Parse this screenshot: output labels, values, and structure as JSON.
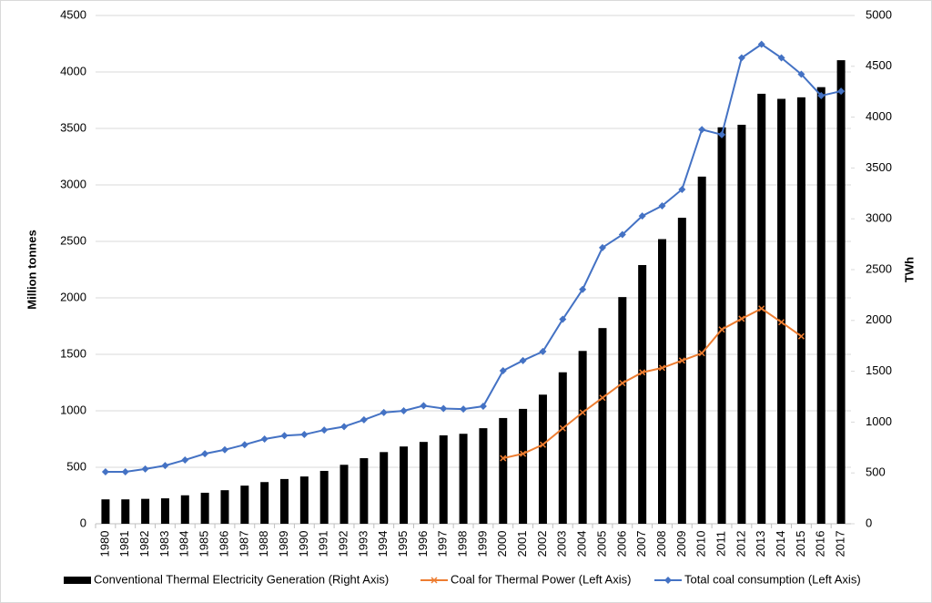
{
  "chart_data": {
    "type": "bar",
    "categories": [
      "1980",
      "1981",
      "1982",
      "1983",
      "1984",
      "1985",
      "1986",
      "1987",
      "1988",
      "1989",
      "1990",
      "1991",
      "1992",
      "1993",
      "1994",
      "1995",
      "1996",
      "1997",
      "1998",
      "1999",
      "2000",
      "2001",
      "2002",
      "2003",
      "2004",
      "2005",
      "2006",
      "2007",
      "2008",
      "2009",
      "2010",
      "2011",
      "2012",
      "2013",
      "2014",
      "2015",
      "2016",
      "2017"
    ],
    "y_label": "Million tonnes",
    "y2_label": "TWh",
    "ylim": [
      0,
      4500
    ],
    "yticks": [
      0,
      500,
      1000,
      1500,
      2000,
      2500,
      3000,
      3500,
      4000,
      4500
    ],
    "y2lim": [
      0,
      5000
    ],
    "y2ticks": [
      0,
      500,
      1000,
      1500,
      2000,
      2500,
      3000,
      3500,
      4000,
      4500,
      5000
    ],
    "grid": true,
    "legend": "bottom",
    "series": [
      {
        "name": "Conventional Thermal Electricity Generation (Right Axis)",
        "type": "bar",
        "axis": "y2",
        "color": "#000000",
        "values": [
          240,
          240,
          245,
          250,
          280,
          305,
          330,
          375,
          410,
          440,
          465,
          520,
          580,
          645,
          705,
          760,
          805,
          870,
          885,
          940,
          1040,
          1130,
          1270,
          1490,
          1700,
          1925,
          2230,
          2545,
          2800,
          3010,
          3415,
          3900,
          3925,
          4230,
          4180,
          4195,
          4295,
          4560
        ]
      },
      {
        "name": "Coal for Thermal Power (Left Axis)",
        "type": "line",
        "marker": "x",
        "color": "#ed7d31",
        "values": [
          null,
          null,
          null,
          null,
          null,
          null,
          null,
          null,
          null,
          null,
          null,
          null,
          null,
          null,
          null,
          null,
          null,
          null,
          null,
          null,
          580,
          620,
          700,
          845,
          985,
          1115,
          1245,
          1340,
          1380,
          1445,
          1510,
          1720,
          1815,
          1905,
          1785,
          1660,
          null,
          null
        ]
      },
      {
        "name": "Total coal consumption (Left Axis)",
        "type": "line",
        "marker": "diamond",
        "color": "#4472c4",
        "values": [
          460,
          460,
          485,
          515,
          565,
          620,
          655,
          700,
          750,
          780,
          790,
          830,
          860,
          920,
          985,
          1000,
          1045,
          1020,
          1015,
          1040,
          1355,
          1445,
          1525,
          1810,
          2075,
          2445,
          2560,
          2725,
          2815,
          2960,
          3490,
          3445,
          4125,
          4245,
          4125,
          3980,
          3790,
          3830
        ]
      }
    ]
  }
}
